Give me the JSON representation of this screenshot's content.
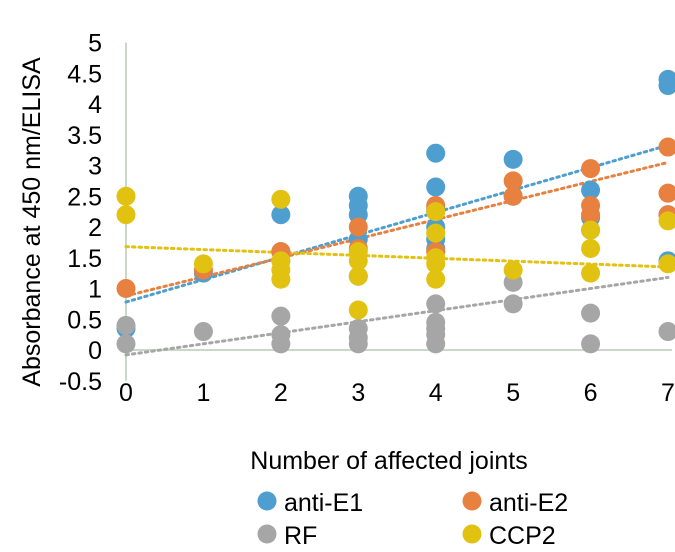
{
  "chart_data": {
    "type": "scatter",
    "title": "",
    "xlabel": "Number  of affected joints",
    "ylabel": "Absorbance at 450 nm/ELISA",
    "xlim": [
      0,
      7
    ],
    "ylim": [
      -0.5,
      5
    ],
    "xticks": [
      "0",
      "1",
      "2",
      "3",
      "4",
      "5",
      "6",
      "7"
    ],
    "yticks": [
      "-0.5",
      "0",
      "0.5",
      "1",
      "1.5",
      "2",
      "2.5",
      "3",
      "3.5",
      "4",
      "4.5",
      "5"
    ],
    "grid": false,
    "legend_position": "bottom",
    "trendline_style": "dotted linear",
    "series": [
      {
        "name": "anti-E1",
        "color": "#4e9fd0",
        "points": [
          [
            0,
            0.35
          ],
          [
            1,
            1.25
          ],
          [
            2,
            2.2
          ],
          [
            2,
            1.6
          ],
          [
            3,
            2.5
          ],
          [
            3,
            2.35
          ],
          [
            3,
            2.2
          ],
          [
            3,
            1.8
          ],
          [
            3,
            1.2
          ],
          [
            4,
            3.2
          ],
          [
            4,
            2.65
          ],
          [
            4,
            2.3
          ],
          [
            4,
            2.0
          ],
          [
            4,
            1.8
          ],
          [
            4,
            1.65
          ],
          [
            5,
            3.1
          ],
          [
            5,
            2.5
          ],
          [
            6,
            2.6
          ],
          [
            6,
            2.15
          ],
          [
            6,
            1.95
          ],
          [
            7,
            4.4
          ],
          [
            7,
            4.3
          ],
          [
            7,
            2.2
          ],
          [
            7,
            1.45
          ]
        ],
        "trend": [
          [
            0,
            0.78
          ],
          [
            7,
            3.33
          ]
        ]
      },
      {
        "name": "anti-E2",
        "color": "#e8803f",
        "points": [
          [
            0,
            1.0
          ],
          [
            1,
            1.3
          ],
          [
            2,
            1.6
          ],
          [
            2,
            1.45
          ],
          [
            3,
            2.0
          ],
          [
            3,
            1.65
          ],
          [
            4,
            2.35
          ],
          [
            4,
            2.25
          ],
          [
            4,
            1.6
          ],
          [
            5,
            2.75
          ],
          [
            5,
            2.5
          ],
          [
            6,
            2.95
          ],
          [
            6,
            2.35
          ],
          [
            6,
            2.2
          ],
          [
            7,
            3.3
          ],
          [
            7,
            2.55
          ],
          [
            7,
            2.2
          ]
        ],
        "trend": [
          [
            0,
            0.88
          ],
          [
            7,
            3.05
          ]
        ]
      },
      {
        "name": "RF",
        "color": "#a6a6a6",
        "points": [
          [
            0,
            0.4
          ],
          [
            0,
            0.1
          ],
          [
            1,
            0.3
          ],
          [
            2,
            0.55
          ],
          [
            2,
            0.25
          ],
          [
            2,
            0.1
          ],
          [
            3,
            0.35
          ],
          [
            3,
            0.2
          ],
          [
            3,
            0.1
          ],
          [
            4,
            0.75
          ],
          [
            4,
            0.45
          ],
          [
            4,
            0.35
          ],
          [
            4,
            0.25
          ],
          [
            4,
            0.1
          ],
          [
            5,
            1.1
          ],
          [
            5,
            0.75
          ],
          [
            6,
            0.6
          ],
          [
            6,
            0.1
          ],
          [
            7,
            0.3
          ]
        ],
        "trend": [
          [
            0,
            -0.08
          ],
          [
            7,
            1.18
          ]
        ]
      },
      {
        "name": "CCP2",
        "color": "#e2c211",
        "points": [
          [
            0,
            2.5
          ],
          [
            0,
            2.2
          ],
          [
            1,
            1.4
          ],
          [
            2,
            2.45
          ],
          [
            2,
            1.45
          ],
          [
            2,
            1.3
          ],
          [
            2,
            1.15
          ],
          [
            3,
            1.6
          ],
          [
            3,
            1.45
          ],
          [
            3,
            1.2
          ],
          [
            3,
            0.65
          ],
          [
            4,
            2.25
          ],
          [
            4,
            1.9
          ],
          [
            4,
            1.5
          ],
          [
            4,
            1.4
          ],
          [
            4,
            1.15
          ],
          [
            5,
            1.3
          ],
          [
            6,
            1.95
          ],
          [
            6,
            1.65
          ],
          [
            6,
            1.25
          ],
          [
            7,
            2.1
          ],
          [
            7,
            1.4
          ]
        ],
        "trend": [
          [
            0,
            1.68
          ],
          [
            7,
            1.35
          ]
        ]
      }
    ]
  }
}
